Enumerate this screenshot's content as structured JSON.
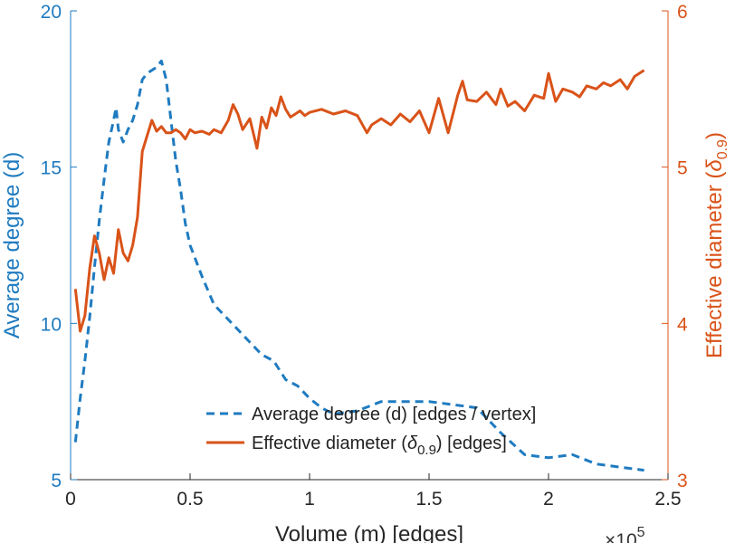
{
  "chart_data": {
    "type": "line",
    "xlabel": "Volume (m) [edges]",
    "x_exponent": {
      "base": "×10",
      "power": "5"
    },
    "ylabel_left": "Average degree (d)",
    "ylabel_right": "Effective diameter (δ0.9)",
    "ylabel_right_parts": {
      "prefix": "Effective diameter (",
      "symbol": "δ",
      "subscript": "0.9",
      "suffix": ")"
    },
    "xlim": [
      0,
      2.5
    ],
    "ylim_left": [
      5,
      20
    ],
    "ylim_right": [
      3,
      6
    ],
    "x_ticks": [
      "0",
      "0.5",
      "1",
      "1.5",
      "2",
      "2.5"
    ],
    "y_left_ticks": [
      "5",
      "10",
      "15",
      "20"
    ],
    "y_right_ticks": [
      "3",
      "4",
      "5",
      "6"
    ],
    "colors": {
      "degree": "#1f7bc0",
      "diameter": "#d95319",
      "axis": "#262626"
    },
    "series": [
      {
        "name": "Average degree (d) [edges / vertex]",
        "axis": "left",
        "style": "dashed",
        "x": [
          0.02,
          0.04,
          0.06,
          0.08,
          0.1,
          0.12,
          0.14,
          0.16,
          0.18,
          0.19,
          0.2,
          0.22,
          0.24,
          0.26,
          0.28,
          0.3,
          0.32,
          0.34,
          0.36,
          0.38,
          0.4,
          0.42,
          0.44,
          0.46,
          0.48,
          0.5,
          0.55,
          0.6,
          0.65,
          0.7,
          0.75,
          0.8,
          0.85,
          0.9,
          0.95,
          1.0,
          1.05,
          1.1,
          1.2,
          1.3,
          1.4,
          1.5,
          1.6,
          1.7,
          1.8,
          1.9,
          2.0,
          2.1,
          2.2,
          2.3,
          2.4
        ],
        "values": [
          6.2,
          7.6,
          8.8,
          10.2,
          11.8,
          13.3,
          14.6,
          15.8,
          16.5,
          16.9,
          16.2,
          15.8,
          16.2,
          16.5,
          17.0,
          17.8,
          18.0,
          18.1,
          18.2,
          18.4,
          17.8,
          16.5,
          15.2,
          14.3,
          13.2,
          12.5,
          11.5,
          10.6,
          10.2,
          9.8,
          9.4,
          9.0,
          8.8,
          8.2,
          8.0,
          7.6,
          7.3,
          7.1,
          7.2,
          7.5,
          7.5,
          7.5,
          7.4,
          7.3,
          6.5,
          5.8,
          5.7,
          5.8,
          5.5,
          5.4,
          5.3
        ]
      },
      {
        "name": "Effective diameter (δ0.9) [edges]",
        "axis": "right",
        "style": "solid",
        "x": [
          0.02,
          0.04,
          0.06,
          0.08,
          0.1,
          0.12,
          0.14,
          0.16,
          0.18,
          0.2,
          0.22,
          0.24,
          0.26,
          0.28,
          0.3,
          0.32,
          0.34,
          0.36,
          0.38,
          0.4,
          0.42,
          0.44,
          0.46,
          0.48,
          0.5,
          0.52,
          0.55,
          0.58,
          0.6,
          0.63,
          0.66,
          0.68,
          0.7,
          0.72,
          0.75,
          0.78,
          0.8,
          0.82,
          0.84,
          0.86,
          0.88,
          0.9,
          0.92,
          0.94,
          0.96,
          0.98,
          1.0,
          1.05,
          1.1,
          1.15,
          1.2,
          1.24,
          1.26,
          1.3,
          1.34,
          1.38,
          1.42,
          1.46,
          1.5,
          1.54,
          1.58,
          1.62,
          1.64,
          1.66,
          1.7,
          1.74,
          1.78,
          1.8,
          1.83,
          1.86,
          1.9,
          1.94,
          1.98,
          2.0,
          2.03,
          2.06,
          2.1,
          2.13,
          2.16,
          2.2,
          2.23,
          2.26,
          2.3,
          2.33,
          2.36,
          2.4
        ],
        "values": [
          4.22,
          3.95,
          4.05,
          4.35,
          4.56,
          4.45,
          4.28,
          4.42,
          4.32,
          4.6,
          4.45,
          4.4,
          4.5,
          4.68,
          5.1,
          5.2,
          5.3,
          5.23,
          5.26,
          5.22,
          5.22,
          5.24,
          5.22,
          5.18,
          5.24,
          5.22,
          5.23,
          5.21,
          5.24,
          5.22,
          5.3,
          5.4,
          5.34,
          5.24,
          5.31,
          5.12,
          5.32,
          5.25,
          5.38,
          5.33,
          5.45,
          5.37,
          5.32,
          5.34,
          5.36,
          5.33,
          5.35,
          5.37,
          5.34,
          5.36,
          5.33,
          5.22,
          5.27,
          5.31,
          5.27,
          5.34,
          5.29,
          5.36,
          5.22,
          5.44,
          5.22,
          5.46,
          5.55,
          5.43,
          5.42,
          5.48,
          5.4,
          5.5,
          5.39,
          5.42,
          5.36,
          5.46,
          5.44,
          5.6,
          5.42,
          5.5,
          5.48,
          5.45,
          5.52,
          5.5,
          5.54,
          5.52,
          5.56,
          5.5,
          5.58,
          5.62
        ]
      }
    ],
    "legend": {
      "placement": "bottom-center",
      "entries": [
        {
          "prefix": "Average degree (d) [edges / vertex]",
          "symbol": "",
          "subscript": "",
          "suffix": ""
        },
        {
          "prefix": "Effective diameter (",
          "symbol": "δ",
          "subscript": "0.9",
          "suffix": ") [edges]"
        }
      ]
    }
  }
}
